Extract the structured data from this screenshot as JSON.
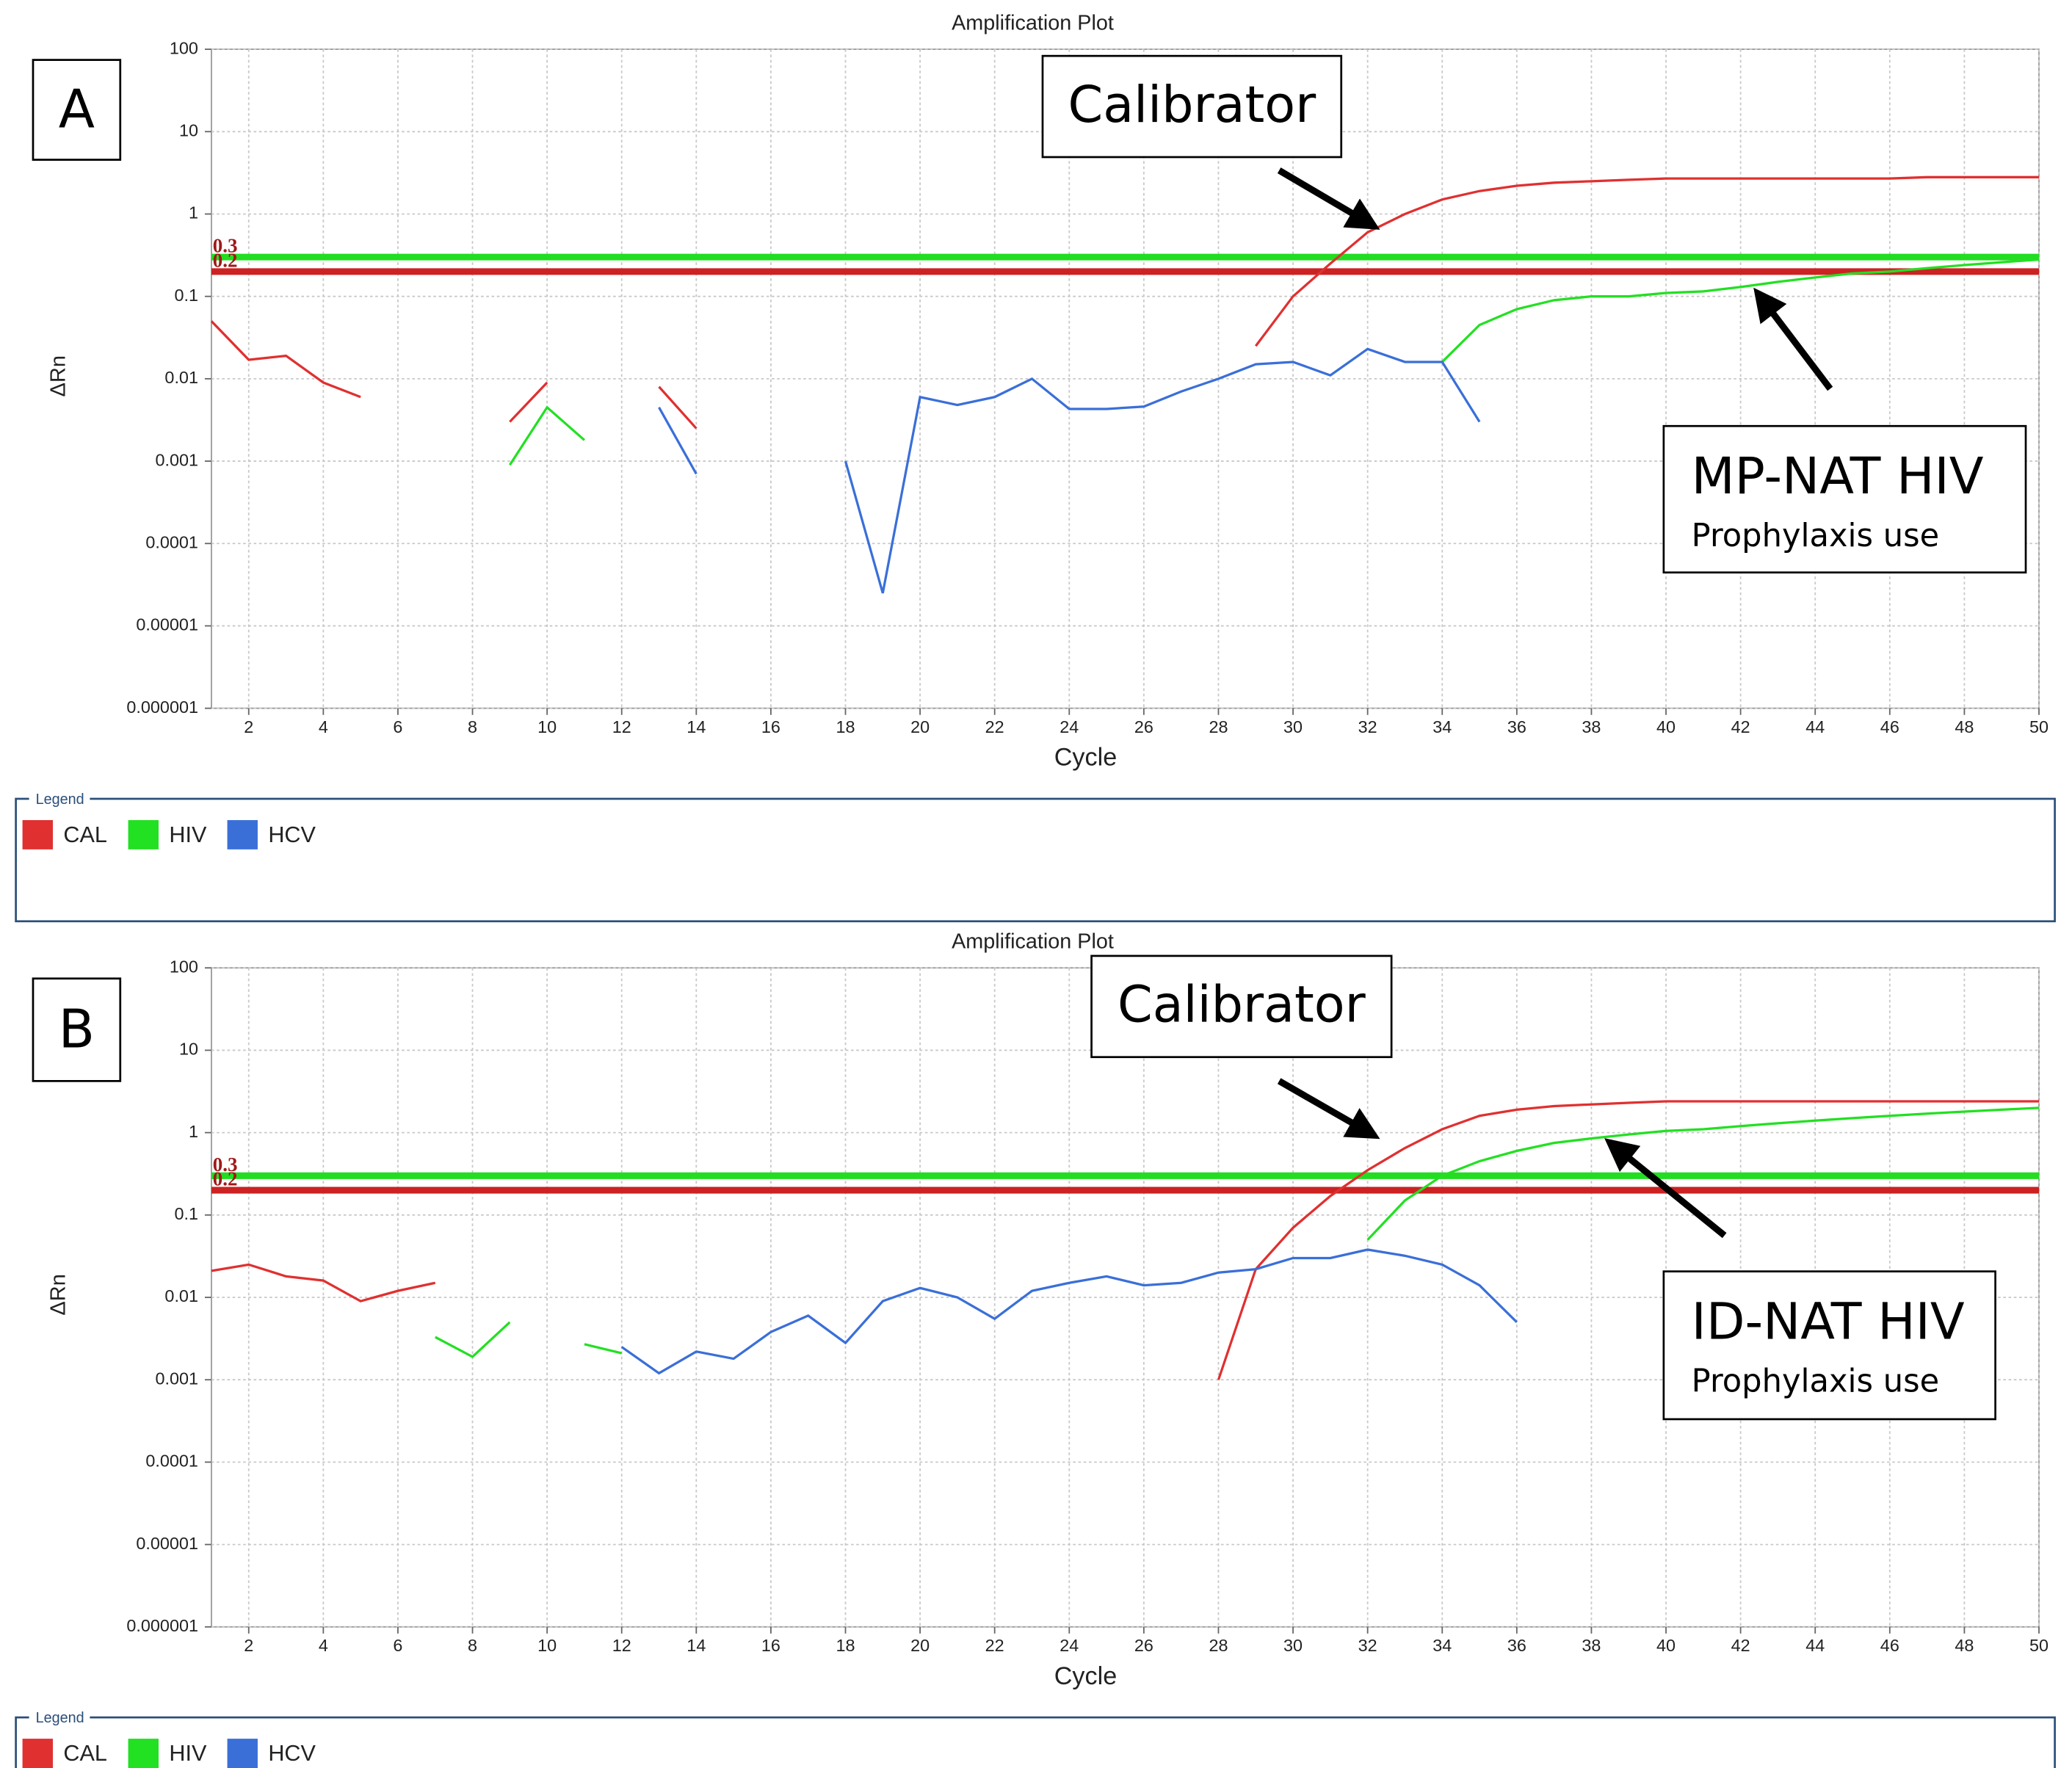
{
  "chart_data": [
    {
      "type": "line",
      "title": "Amplification Plot",
      "panel_label": "A",
      "callout": "Calibrator",
      "sample_label": "MP-NAT HIV",
      "sample_note": "Prophylaxis use",
      "x_label": "Cycle",
      "y_label": "ΔRn",
      "log_y": true,
      "grid": true,
      "legend_title": "Legend",
      "xlim": [
        1,
        50
      ],
      "xticks": [
        2,
        4,
        6,
        8,
        10,
        12,
        14,
        16,
        18,
        20,
        22,
        24,
        26,
        28,
        30,
        32,
        34,
        36,
        38,
        40,
        42,
        44,
        46,
        48,
        50
      ],
      "ylim": [
        1e-06,
        100
      ],
      "yticks": [
        1e-06,
        1e-05,
        0.0001,
        0.001,
        0.01,
        0.1,
        1,
        10,
        100
      ],
      "thresholds": [
        {
          "value": 0.3,
          "color": "#22dd22"
        },
        {
          "value": 0.2,
          "color": "#cc2222"
        }
      ],
      "x": [
        1,
        2,
        3,
        4,
        5,
        6,
        7,
        8,
        9,
        10,
        11,
        12,
        13,
        14,
        15,
        16,
        17,
        18,
        19,
        20,
        21,
        22,
        23,
        24,
        25,
        26,
        27,
        28,
        29,
        30,
        31,
        32,
        33,
        34,
        35,
        36,
        37,
        38,
        39,
        40,
        41,
        42,
        43,
        44,
        45,
        46,
        47,
        48,
        49,
        50
      ],
      "series": [
        {
          "name": "CAL",
          "color": "#e03030",
          "values": [
            0.05,
            0.017,
            0.019,
            0.009,
            0.006,
            null,
            null,
            null,
            0.003,
            0.009,
            null,
            null,
            0.008,
            0.0025,
            null,
            null,
            null,
            null,
            null,
            null,
            null,
            null,
            null,
            null,
            null,
            null,
            null,
            null,
            0.025,
            0.1,
            0.25,
            0.6,
            1,
            1.5,
            1.9,
            2.2,
            2.4,
            2.5,
            2.6,
            2.7,
            2.7,
            2.7,
            2.7,
            2.7,
            2.7,
            2.7,
            2.8,
            2.8,
            2.8,
            2.8
          ]
        },
        {
          "name": "HIV",
          "color": "#22e022",
          "values": [
            null,
            null,
            null,
            null,
            null,
            null,
            null,
            null,
            0.0009,
            0.0045,
            0.0018,
            null,
            null,
            null,
            null,
            null,
            null,
            null,
            null,
            null,
            null,
            null,
            null,
            null,
            null,
            null,
            null,
            null,
            null,
            null,
            null,
            null,
            null,
            0.016,
            0.045,
            0.07,
            0.09,
            0.1,
            0.1,
            0.11,
            0.115,
            0.13,
            0.15,
            0.17,
            0.19,
            0.2,
            0.22,
            0.24,
            0.26,
            0.28
          ]
        },
        {
          "name": "HCV",
          "color": "#3a6fd8",
          "values": [
            null,
            null,
            null,
            null,
            null,
            null,
            null,
            null,
            null,
            null,
            null,
            null,
            0.0045,
            0.0007,
            null,
            null,
            null,
            0.001,
            2.5e-05,
            0.006,
            0.0048,
            0.006,
            0.01,
            0.0043,
            0.0043,
            0.0046,
            0.007,
            0.01,
            0.015,
            0.016,
            0.011,
            0.023,
            0.016,
            0.016,
            0.003,
            null,
            null,
            null,
            null,
            null,
            null,
            null,
            null,
            null,
            null,
            null,
            null,
            null,
            null,
            null
          ]
        }
      ]
    },
    {
      "type": "line",
      "title": "Amplification Plot",
      "panel_label": "B",
      "callout": "Calibrator",
      "sample_label": "ID-NAT HIV",
      "sample_note": "Prophylaxis use",
      "x_label": "Cycle",
      "y_label": "ΔRn",
      "log_y": true,
      "grid": true,
      "legend_title": "Legend",
      "xlim": [
        1,
        50
      ],
      "xticks": [
        2,
        4,
        6,
        8,
        10,
        12,
        14,
        16,
        18,
        20,
        22,
        24,
        26,
        28,
        30,
        32,
        34,
        36,
        38,
        40,
        42,
        44,
        46,
        48,
        50
      ],
      "ylim": [
        1e-06,
        100
      ],
      "yticks": [
        1e-06,
        1e-05,
        0.0001,
        0.001,
        0.01,
        0.1,
        1,
        10,
        100
      ],
      "thresholds": [
        {
          "value": 0.3,
          "color": "#22dd22"
        },
        {
          "value": 0.2,
          "color": "#cc2222"
        }
      ],
      "x": [
        1,
        2,
        3,
        4,
        5,
        6,
        7,
        8,
        9,
        10,
        11,
        12,
        13,
        14,
        15,
        16,
        17,
        18,
        19,
        20,
        21,
        22,
        23,
        24,
        25,
        26,
        27,
        28,
        29,
        30,
        31,
        32,
        33,
        34,
        35,
        36,
        37,
        38,
        39,
        40,
        41,
        42,
        43,
        44,
        45,
        46,
        47,
        48,
        49,
        50
      ],
      "series": [
        {
          "name": "CAL",
          "color": "#e03030",
          "values": [
            0.021,
            0.025,
            0.018,
            0.016,
            0.009,
            0.012,
            0.015,
            null,
            null,
            null,
            null,
            null,
            null,
            null,
            null,
            null,
            null,
            null,
            null,
            null,
            null,
            null,
            null,
            null,
            null,
            null,
            null,
            0.001,
            0.022,
            0.07,
            0.17,
            0.35,
            0.65,
            1.1,
            1.6,
            1.9,
            2.1,
            2.2,
            2.3,
            2.4,
            2.4,
            2.4,
            2.4,
            2.4,
            2.4,
            2.4,
            2.4,
            2.4,
            2.4,
            2.4
          ]
        },
        {
          "name": "HIV",
          "color": "#22e022",
          "values": [
            null,
            null,
            null,
            null,
            null,
            null,
            0.0033,
            0.0019,
            0.005,
            null,
            0.0027,
            0.0021,
            null,
            null,
            null,
            null,
            null,
            null,
            null,
            null,
            null,
            null,
            null,
            null,
            null,
            null,
            null,
            null,
            null,
            null,
            null,
            0.05,
            0.15,
            0.3,
            0.45,
            0.6,
            0.75,
            0.85,
            0.95,
            1.05,
            1.1,
            1.2,
            1.3,
            1.4,
            1.5,
            1.6,
            1.7,
            1.8,
            1.9,
            2.0
          ]
        },
        {
          "name": "HCV",
          "color": "#3a6fd8",
          "values": [
            null,
            null,
            null,
            null,
            null,
            null,
            null,
            null,
            null,
            null,
            null,
            0.0025,
            0.0012,
            0.0022,
            0.0018,
            0.0038,
            0.006,
            0.0028,
            0.009,
            0.013,
            0.01,
            0.0055,
            0.012,
            0.015,
            0.018,
            0.014,
            0.015,
            0.02,
            0.022,
            0.03,
            0.03,
            0.038,
            0.032,
            0.025,
            0.014,
            0.005,
            null,
            null,
            null,
            null,
            null,
            null,
            null,
            null,
            null,
            null,
            null,
            null,
            null,
            null
          ]
        }
      ]
    }
  ]
}
